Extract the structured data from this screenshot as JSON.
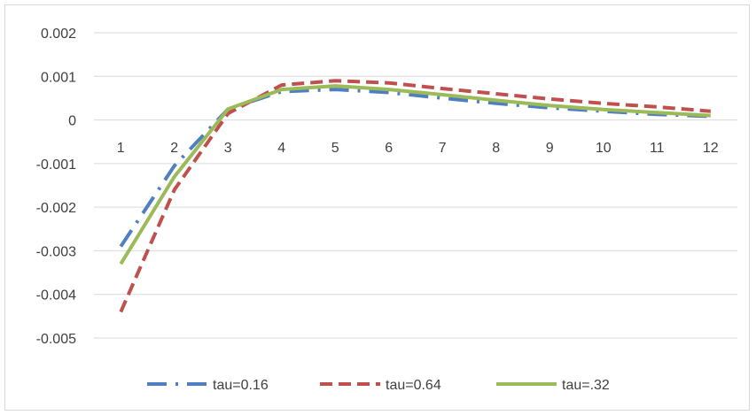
{
  "chart_data": {
    "type": "line",
    "title": "",
    "xlabel": "",
    "ylabel": "",
    "categories": [
      "1",
      "2",
      "3",
      "4",
      "5",
      "6",
      "7",
      "8",
      "9",
      "10",
      "11",
      "12"
    ],
    "ylim": [
      -0.005,
      0.002
    ],
    "yticks": [
      0.002,
      0.001,
      0,
      -0.001,
      -0.002,
      -0.003,
      -0.004,
      -0.005
    ],
    "ytick_labels": [
      "0.002",
      "0.001",
      "0",
      "-0.001",
      "-0.002",
      "-0.003",
      "-0.004",
      "-0.005"
    ],
    "grid": true,
    "legend_position": "bottom",
    "series": [
      {
        "name": "tau=0.16",
        "color": "#4f7fc1",
        "style": "dash-dot",
        "values": [
          -0.0029,
          -0.00105,
          0.00025,
          0.00065,
          0.0007,
          0.00063,
          0.0005,
          0.00038,
          0.00028,
          0.0002,
          0.00013,
          8e-05
        ]
      },
      {
        "name": "tau=0.64",
        "color": "#c0504d",
        "style": "dash",
        "values": [
          -0.0044,
          -0.0016,
          0.00015,
          0.0008,
          0.0009,
          0.00085,
          0.00072,
          0.0006,
          0.00048,
          0.00038,
          0.0003,
          0.0002
        ]
      },
      {
        "name": "tau=.32",
        "color": "#9bbb59",
        "style": "solid",
        "values": [
          -0.0033,
          -0.0013,
          0.00025,
          0.0007,
          0.00078,
          0.0007,
          0.00058,
          0.00045,
          0.00033,
          0.00024,
          0.00017,
          0.0001
        ]
      }
    ]
  }
}
